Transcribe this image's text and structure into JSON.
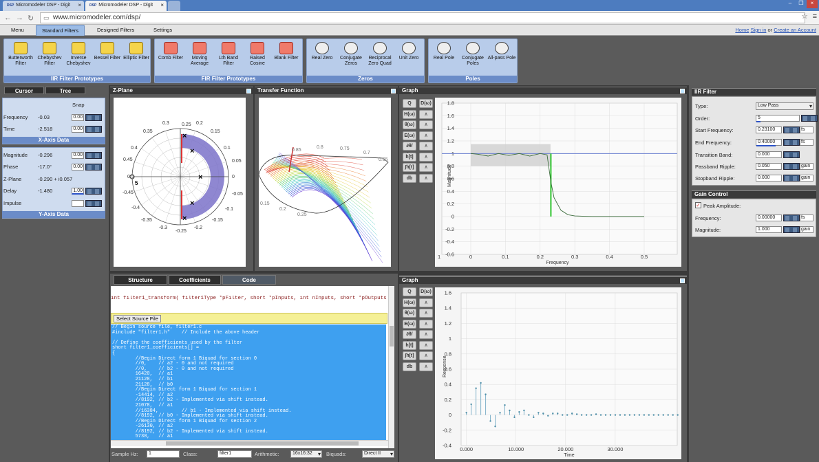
{
  "browser": {
    "tabs": [
      {
        "label": "Micromodeler DSP - Digit",
        "favicon": "DSP"
      },
      {
        "label": "Micromodeler DSP - Digit",
        "favicon": "DSP"
      }
    ],
    "url": "www.micromodeler.com/dsp/"
  },
  "menu": {
    "tabs": [
      "Menu",
      "Standard Filters",
      "Designed Filters",
      "Settings"
    ],
    "user_links": {
      "home": "Home",
      "sign_in": "Sign in",
      "or": "or",
      "create": "Create an Account"
    }
  },
  "ribbon": {
    "iir": {
      "title": "IIR Filter Prototypes",
      "tools": [
        "Butterworth Filter",
        "Chebyshev Filter",
        "Inverse Chebyshev",
        "Bessel Filter",
        "Elliptic Filter"
      ]
    },
    "fir": {
      "title": "FIR Filter Prototypes",
      "tools": [
        "Comb Filter",
        "Moving Average",
        "Lth Band Filter",
        "Raised Cosine",
        "Blank Filter"
      ]
    },
    "zeros": {
      "title": "Zeros",
      "tools": [
        "Real Zero",
        "Conjugate Zeros",
        "Reciprocal Zero Quad",
        "Unit Zero"
      ]
    },
    "poles": {
      "title": "Poles",
      "tools": [
        "Real Pole",
        "Conjugate Poles",
        "All-pass Pole"
      ]
    }
  },
  "left": {
    "tabs": [
      "Cursor",
      "Tree"
    ],
    "snap": "Snap",
    "x_axis": {
      "title": "X-Axis Data",
      "rows": [
        {
          "label": "Frequency",
          "value": "-0.03",
          "snap": "0.00"
        },
        {
          "label": "Time",
          "value": "-2.518",
          "snap": "0.00"
        }
      ]
    },
    "y_axis": {
      "title": "Y-Axis Data",
      "rows": [
        {
          "label": "Magnitude",
          "value": "-0.296",
          "snap": "0.00"
        },
        {
          "label": "Phase",
          "value": "-17.0°",
          "snap": "0.00"
        },
        {
          "label": "Z-Plane",
          "value": "-0.290 + i0.057",
          "snap": ""
        },
        {
          "label": "Delay",
          "value": "-1.480",
          "snap": "1.00"
        },
        {
          "label": "Impulse",
          "value": "",
          "snap": ""
        }
      ]
    }
  },
  "panels": {
    "zplane": "Z-Plane",
    "transfer": "Transfer Function",
    "graph1": "Graph",
    "graph2": "Graph"
  },
  "zplane_labels": [
    "0.3",
    "0.25",
    "0.2",
    "0.35",
    "0.15",
    "0.4",
    "0.1",
    "0.45",
    "0.05",
    "0.5",
    "0",
    "-0.45",
    "-0.05",
    "-0.4",
    "-0.1",
    "-0.35",
    "-0.15",
    "-0.3",
    "-0.2",
    "-0.25"
  ],
  "transfer_labels": [
    "0.85",
    "0.8",
    "0.75",
    "0.7",
    "0.65",
    "0.15",
    "0.2",
    "0.25"
  ],
  "graph_tools": [
    "Q",
    "D(ω)",
    "H(ω)",
    "θ(ω)",
    "E(ω)",
    "∂θ/∂ω",
    "h[t]",
    "∫h[t]",
    "db"
  ],
  "graph1": {
    "xlabel": "Frequency",
    "ylabel": "Magnitude",
    "xticks": [
      "0",
      "0.1",
      "0.2",
      "0.3",
      "0.4",
      "0.5"
    ],
    "xtick_left": "1",
    "yticks": [
      "1.8",
      "1.6",
      "1.4",
      "1.2",
      "1",
      "0.8",
      "0.6",
      "0.4",
      "0.2",
      "0",
      "-0.2",
      "-0.4",
      "-0.6"
    ]
  },
  "graph2": {
    "xlabel": "Time",
    "ylabel": "Response",
    "xticks": [
      "0.000",
      "10.000",
      "20.000",
      "30.000"
    ],
    "yticks": [
      "1.6",
      "1.4",
      "1.2",
      "1",
      "0.8",
      "0.6",
      "0.4",
      "0.2",
      "0",
      "-0.2",
      "-0.4"
    ]
  },
  "code": {
    "tabs": [
      "Structure",
      "Coefficients",
      "Code"
    ],
    "signature": "int filter1_transform( filter1Type *pFilter, short *pInputs, int nInputs, short *pOutputs );",
    "select_button": "Select Source File",
    "lines": [
      "// Begin source file, filter1.c",
      "#include \"filter1.h\"    // Include the above header",
      "",
      "// Define the coefficients used by the filter",
      "short filter1_coefficients[] =",
      "{",
      "        //Begin Direct form 1 Biquad for section 0",
      "        //0,    // a2 - 0 and not required",
      "        //0,    // b2 - 0 and not required",
      "        16420,  // a1",
      "        21128,  // b1",
      "        21128,  // b0",
      "        //Begin Direct form 1 Biquad for section 1",
      "        -14414, // a2",
      "        //8192, // b2 - Implemented via shift instead.",
      "        21078,  // a1",
      "        //16384,        // b1 - Implemented via shift instead.",
      "        //8192, // b0 - Implemented via shift instead.",
      "        //Begin Direct form 1 Biquad for section 2",
      "        -26130, // a2",
      "        //8192, // b2 - Implemented via shift instead.",
      "        5738,   // a1"
    ]
  },
  "bottom": {
    "sample_label": "Sample Hz:",
    "sample_value": "1",
    "class_label": "Class:",
    "class_value": "filter1",
    "arith_label": "Arithmetic:",
    "arith_value": "16x16:32",
    "biquads_label": "Biquads:",
    "biquads_value": "Direct II"
  },
  "iir": {
    "title": "IIR Filter",
    "rows": [
      {
        "label": "Type:",
        "value": "Low Pass",
        "unit": ""
      },
      {
        "label": "Order:",
        "value": "5",
        "unit": ""
      },
      {
        "label": "Start Frequency:",
        "value": "0.23100",
        "unit": "fs"
      },
      {
        "label": "End Frequency:",
        "value": "0.40000",
        "unit": "fs"
      },
      {
        "label": "Transition Band:",
        "value": "0.000",
        "unit": ""
      },
      {
        "label": "Passband Ripple:",
        "value": "0.050",
        "unit": "gain"
      },
      {
        "label": "Stopband Ripple:",
        "value": "0.000",
        "unit": "gain"
      }
    ]
  },
  "gain": {
    "title": "Gain Control",
    "peak_label": "Peak Amplitude:",
    "rows": [
      {
        "label": "Frequency:",
        "value": "0.00000",
        "unit": "fs"
      },
      {
        "label": "Magnitude:",
        "value": "1.000",
        "unit": "gain"
      }
    ]
  },
  "chart_data": [
    {
      "type": "line",
      "ylabel": "Magnitude",
      "xlabel": "Frequency",
      "xlim": [
        0,
        0.5
      ],
      "ylim": [
        -0.6,
        1.8
      ],
      "series": [
        {
          "x": [
            0,
            0.02,
            0.05,
            0.08,
            0.11,
            0.14,
            0.17,
            0.2,
            0.22,
            0.231,
            0.24,
            0.26,
            0.28,
            0.3,
            0.35,
            0.4,
            0.45,
            0.5
          ],
          "values": [
            1.0,
            0.99,
            0.96,
            1.0,
            0.97,
            1.0,
            0.96,
            1.0,
            0.98,
            0.55,
            0.3,
            0.1,
            0.03,
            0.01,
            0.0,
            0.0,
            0.0,
            0.0
          ]
        }
      ],
      "shaded_band": {
        "x": [
          0,
          0.23
        ],
        "y": [
          0.8,
          1.15
        ]
      }
    },
    {
      "type": "scatter",
      "ylabel": "Response",
      "xlabel": "Time",
      "xlim": [
        0,
        45
      ],
      "ylim": [
        -0.4,
        1.6
      ],
      "series": [
        {
          "x": [
            0,
            1,
            2,
            3,
            4,
            5,
            6,
            7,
            8,
            9,
            10,
            11,
            12,
            13,
            14,
            15,
            16,
            17,
            18,
            19,
            20,
            21,
            22,
            23,
            24,
            25,
            26,
            27,
            28,
            29,
            30,
            31,
            32,
            33,
            34,
            35,
            36,
            37,
            38,
            39,
            40,
            41,
            42,
            43,
            44,
            45
          ],
          "values": [
            0.03,
            0.14,
            0.35,
            0.42,
            0.27,
            -0.08,
            -0.15,
            0.03,
            0.13,
            0.06,
            -0.03,
            0.04,
            0.06,
            0.0,
            -0.03,
            0.03,
            0.02,
            -0.01,
            0.02,
            0.02,
            0.0,
            0.0,
            0.02,
            0.01,
            0.0,
            0.0,
            0.0,
            0.01,
            0.0,
            0.0,
            0.0,
            0.0,
            0.0,
            0.0,
            0.0,
            0.0,
            0.0,
            0.0,
            0.0,
            0.0,
            0.0,
            0.0,
            0.0,
            0.0,
            0.0,
            0.0
          ]
        }
      ]
    }
  ]
}
